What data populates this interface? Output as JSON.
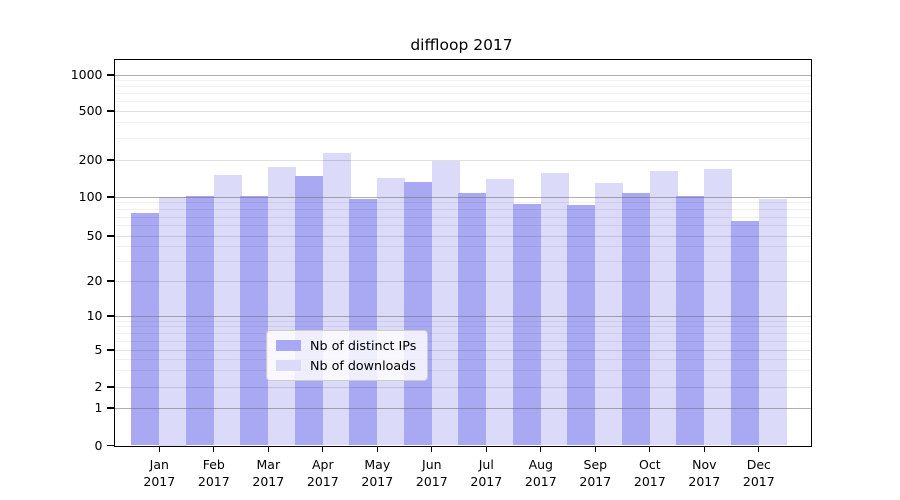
{
  "chart_data": {
    "type": "bar",
    "title": "diffloop 2017",
    "y_scale": "symlog",
    "y_ticks": [
      1000,
      500,
      200,
      100,
      50,
      20,
      10,
      5,
      2,
      1,
      0
    ],
    "ylim": [
      0,
      1330
    ],
    "grid": "horizontal major + minor",
    "legend_position": "inside bottom-center",
    "categories": [
      "Jan",
      "Feb",
      "Mar",
      "Apr",
      "May",
      "Jun",
      "Jul",
      "Aug",
      "Sep",
      "Oct",
      "Nov",
      "Dec"
    ],
    "year": "2017",
    "series": [
      {
        "name": "Nb of distinct IPs",
        "color": "#a9a8f2",
        "values": [
          75,
          101,
          101,
          148,
          97,
          132,
          107,
          88,
          87,
          108,
          102,
          65
        ]
      },
      {
        "name": "Nb of downloads",
        "color": "#dbdaf8",
        "values": [
          100,
          151,
          177,
          227,
          142,
          196,
          141,
          158,
          130,
          164,
          168,
          96
        ]
      }
    ],
    "axis_color": "#000000",
    "major_grid_color": "#b0b0b0",
    "minor_grid_color": "#e8e8e8"
  }
}
